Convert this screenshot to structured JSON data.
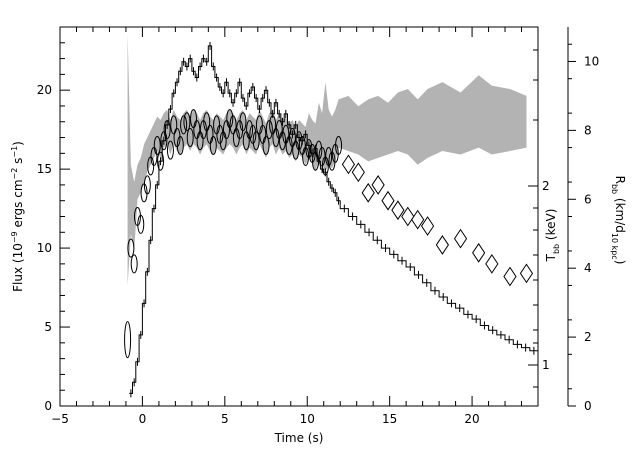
{
  "chart_data": {
    "type": "line",
    "x_axis": {
      "label": "Time (s)",
      "range": [
        -5,
        24
      ],
      "ticks": [
        -5,
        0,
        5,
        10,
        15,
        20
      ],
      "tick_labels": [
        "−5",
        "0",
        "5",
        "10",
        "15",
        "20"
      ]
    },
    "y_left": {
      "label": "Flux (10",
      "label_parts": {
        "base": "Flux (10",
        "exp1": "−9",
        "mid": " ergs cm",
        "exp2": "−2",
        "mid2": " s",
        "exp3": "−1",
        "end": ")"
      },
      "range": [
        0,
        24
      ],
      "ticks": [
        0,
        5,
        10,
        15,
        20
      ],
      "tick_labels": [
        "0",
        "5",
        "10",
        "15",
        "20"
      ]
    },
    "y_right_inner": {
      "label_base": "T",
      "label_sub": "bb",
      "label_end": " (keV)",
      "ticks": [
        1,
        2
      ],
      "tick_labels": [
        "1",
        "2"
      ]
    },
    "y_right_outer": {
      "label_base": "R",
      "label_sub": "bb",
      "label_mid": " (km/d",
      "label_sub2": "10 kpc",
      "label_end": ")",
      "range": [
        0,
        11
      ],
      "ticks": [
        0,
        2,
        4,
        6,
        8,
        10
      ],
      "tick_labels": [
        "0",
        "2",
        "4",
        "6",
        "8",
        "10"
      ]
    },
    "series": [
      {
        "style": "histogram",
        "color": "#000000",
        "x": [
          -0.8,
          -0.6,
          -0.4,
          -0.2,
          0,
          0.2,
          0.4,
          0.6,
          0.8,
          1,
          1.2,
          1.4,
          1.6,
          1.8,
          2,
          2.2,
          2.4,
          2.6,
          2.8,
          3,
          3.2,
          3.4,
          3.6,
          3.8,
          4,
          4.2,
          4.4,
          4.6,
          4.8,
          5,
          5.2,
          5.4,
          5.6,
          5.8,
          6,
          6.2,
          6.4,
          6.6,
          6.8,
          7,
          7.2,
          7.4,
          7.6,
          7.8,
          8,
          8.2,
          8.4,
          8.6,
          8.8,
          9,
          9.2,
          9.4,
          9.6,
          9.8,
          10,
          10.2,
          10.4,
          10.6,
          10.8,
          11,
          11.2,
          11.4,
          11.6,
          11.8,
          12,
          12.5,
          13,
          13.5,
          14,
          14.5,
          15,
          15.5,
          16,
          16.5,
          17,
          17.5,
          18,
          18.5,
          19,
          19.5,
          20,
          20.5,
          21,
          21.5,
          22,
          22.5,
          23,
          23.5
        ],
        "y": [
          0.8,
          1.5,
          2.8,
          4.5,
          6.5,
          8.5,
          10.5,
          12.5,
          14,
          15.5,
          16.8,
          17.8,
          18.8,
          19.8,
          20.5,
          21.2,
          21.8,
          21.5,
          22,
          21.2,
          20.8,
          21.5,
          22,
          21.8,
          22.8,
          21.5,
          20.8,
          20.2,
          19.8,
          20.5,
          19.8,
          19.2,
          19.8,
          20.5,
          19.5,
          19,
          19.8,
          20.2,
          19.5,
          18.8,
          19.5,
          20,
          19.2,
          18.5,
          19.2,
          18.5,
          18,
          18.5,
          17.8,
          17.2,
          17.8,
          17,
          16.8,
          17.2,
          16.5,
          16,
          16.3,
          15.5,
          15,
          14.8,
          14.2,
          13.8,
          13.5,
          13,
          12.5,
          12,
          11.5,
          11,
          10.5,
          10,
          9.6,
          9.2,
          8.8,
          8.3,
          7.8,
          7.3,
          6.9,
          6.5,
          6.2,
          5.8,
          5.5,
          5.1,
          4.8,
          4.5,
          4.2,
          3.9,
          3.7,
          3.5
        ]
      },
      {
        "style": "contour-band",
        "color": "#000000",
        "x": [
          -0.9,
          -0.7,
          -0.5,
          -0.3,
          -0.1,
          0.1,
          0.3,
          0.5,
          0.7,
          0.9,
          1.1,
          1.3,
          1.5,
          1.7,
          1.9,
          2.1,
          2.3,
          2.5,
          2.7,
          2.9,
          3.1,
          3.3,
          3.5,
          3.7,
          3.9,
          4.1,
          4.3,
          4.5,
          4.7,
          4.9,
          5.1,
          5.3,
          5.5,
          5.7,
          5.9,
          6.1,
          6.3,
          6.5,
          6.7,
          6.9,
          7.1,
          7.3,
          7.5,
          7.7,
          7.9,
          8.1,
          8.3,
          8.5,
          8.7,
          8.9,
          9.1,
          9.3,
          9.5,
          9.7,
          9.9,
          10.1,
          10.3,
          10.5,
          10.7,
          10.9,
          11.1,
          11.3,
          11.5,
          11.7,
          11.9
        ],
        "y": [
          4.2,
          10,
          9,
          12,
          11.5,
          13.5,
          14,
          15.2,
          15.8,
          16.5,
          15.5,
          16.8,
          17.5,
          16.2,
          17.8,
          17,
          16.5,
          17.8,
          18,
          17,
          18.2,
          17.5,
          16.8,
          17.5,
          18,
          17.2,
          16.5,
          17.8,
          17.2,
          16.8,
          17.5,
          18.2,
          17.8,
          17,
          17.5,
          18,
          16.8,
          17.5,
          17.2,
          16.8,
          17.8,
          17.2,
          16.5,
          17.5,
          17.8,
          17,
          17.5,
          16.8,
          17.2,
          16.5,
          17,
          16.2,
          16.8,
          16.5,
          15.8,
          16.3,
          16,
          15.5,
          16.2,
          15.8,
          15.2,
          15.8,
          15.5,
          16,
          16.5
        ]
      },
      {
        "style": "diamonds",
        "color": "#000000",
        "x": [
          12.5,
          13.1,
          13.7,
          14.3,
          14.9,
          15.5,
          16.1,
          16.7,
          17.3,
          18.2,
          19.3,
          20.4,
          21.2,
          22.3,
          23.3
        ],
        "y": [
          15.3,
          14.8,
          13.5,
          14,
          13,
          12.4,
          12,
          11.8,
          11.4,
          10.2,
          10.6,
          9.7,
          9,
          8.2,
          8.4
        ]
      },
      {
        "style": "shaded-band",
        "color": "#b3b3b3",
        "axis": "y_right_outer",
        "x": [
          -0.9,
          -0.7,
          -0.5,
          -0.3,
          -0.1,
          0.1,
          0.3,
          0.5,
          0.7,
          0.9,
          1.1,
          1.3,
          1.5,
          1.7,
          1.9,
          2.1,
          2.3,
          2.5,
          2.7,
          2.9,
          3.1,
          3.3,
          3.5,
          3.7,
          3.9,
          4.1,
          4.3,
          4.5,
          4.7,
          4.9,
          5.1,
          5.3,
          5.5,
          5.7,
          5.9,
          6.1,
          6.3,
          6.5,
          6.7,
          6.9,
          7.1,
          7.3,
          7.5,
          7.7,
          7.9,
          8.1,
          8.3,
          8.5,
          8.7,
          8.9,
          9.1,
          9.3,
          9.5,
          9.7,
          9.9,
          10.1,
          10.3,
          10.5,
          10.7,
          10.9,
          11.1,
          11.3,
          11.5,
          11.7,
          11.9,
          12.5,
          13.1,
          13.7,
          14.3,
          14.9,
          15.5,
          16.1,
          16.7,
          17.3,
          18.2,
          19.3,
          20.4,
          21.2,
          22.3,
          23.3
        ],
        "y_low": [
          3.5,
          5,
          4.5,
          6,
          6.2,
          6.5,
          6.8,
          7,
          7.2,
          7.4,
          7.2,
          7.5,
          7.6,
          7.3,
          7.6,
          7.4,
          7.3,
          7.5,
          7.6,
          7.4,
          7.6,
          7.5,
          7.3,
          7.5,
          7.6,
          7.4,
          7.3,
          7.5,
          7.4,
          7.3,
          7.5,
          7.6,
          7.5,
          7.3,
          7.5,
          7.6,
          7.3,
          7.5,
          7.4,
          7.3,
          7.6,
          7.4,
          7.2,
          7.5,
          7.6,
          7.3,
          7.5,
          7.3,
          7.4,
          7.2,
          7.3,
          7.1,
          7.3,
          7.2,
          7,
          7.2,
          7.1,
          6.8,
          7.2,
          7,
          6.8,
          7,
          6.9,
          7.1,
          7.5,
          7.4,
          7.3,
          7.1,
          7.2,
          7.3,
          7.4,
          7.3,
          7,
          7.2,
          7.4,
          7.3,
          7.5,
          7.3,
          7.4,
          7.5
        ],
        "y_high": [
          10.8,
          7,
          6.5,
          7,
          7.2,
          7.6,
          7.8,
          8,
          8.2,
          8.4,
          8.3,
          8.5,
          8.6,
          8.3,
          8.6,
          8.4,
          8.3,
          8.5,
          8.6,
          8.4,
          8.6,
          8.5,
          8.3,
          8.5,
          8.6,
          8.4,
          8.3,
          8.5,
          8.4,
          8.3,
          8.5,
          8.6,
          8.5,
          8.3,
          8.5,
          8.6,
          8.3,
          8.5,
          8.4,
          8.3,
          8.6,
          8.4,
          8.2,
          8.5,
          8.6,
          8.3,
          8.5,
          8.3,
          8.4,
          8.2,
          8.3,
          8.1,
          8.3,
          8.2,
          8.1,
          8.5,
          8.3,
          8.2,
          8.8,
          8.5,
          9.4,
          8.6,
          8.4,
          8.6,
          8.9,
          9,
          8.7,
          8.9,
          9,
          8.8,
          9.1,
          9.2,
          8.9,
          9.2,
          9.4,
          9.1,
          9.6,
          9.3,
          9.2,
          9
        ]
      }
    ]
  }
}
